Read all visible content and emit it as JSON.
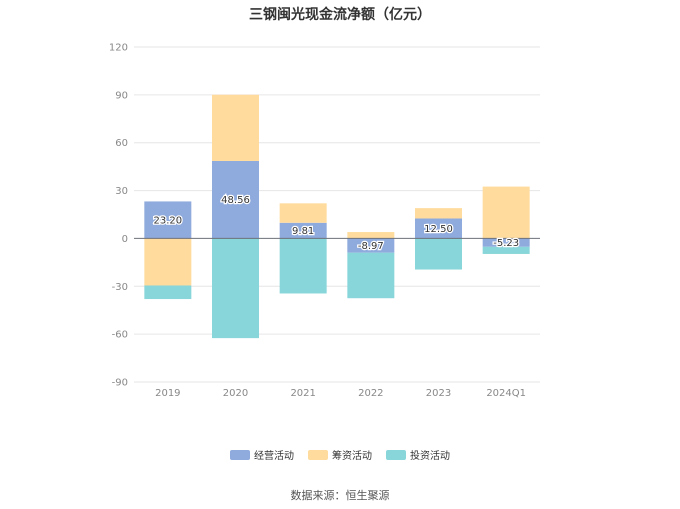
{
  "chart_data": {
    "type": "bar",
    "stacked": true,
    "title": "三钢闽光现金流净额（亿元）",
    "categories": [
      "2019",
      "2020",
      "2021",
      "2022",
      "2023",
      "2024Q1"
    ],
    "ylim": [
      -90,
      120
    ],
    "yticks": [
      120,
      90,
      60,
      30,
      0,
      -30,
      -60,
      -90
    ],
    "grid": true,
    "legend_position": "bottom",
    "series": [
      {
        "name": "经营活动",
        "color": "#8faadc",
        "values": [
          23.2,
          48.56,
          9.81,
          -8.97,
          12.5,
          -5.23
        ],
        "labels": [
          "23.20",
          "48.56",
          "9.81",
          "-8.97",
          "12.50",
          "-5.23"
        ]
      },
      {
        "name": "筹资活动",
        "color": "#ffdc9e",
        "values": [
          -29.5,
          41.5,
          12.2,
          4.0,
          6.5,
          32.5
        ]
      },
      {
        "name": "投资活动",
        "color": "#88d6d9",
        "values": [
          -8.5,
          -62.5,
          -34.5,
          -28.5,
          -19.5,
          -4.5
        ]
      }
    ],
    "source": "数据来源：恒生聚源"
  }
}
